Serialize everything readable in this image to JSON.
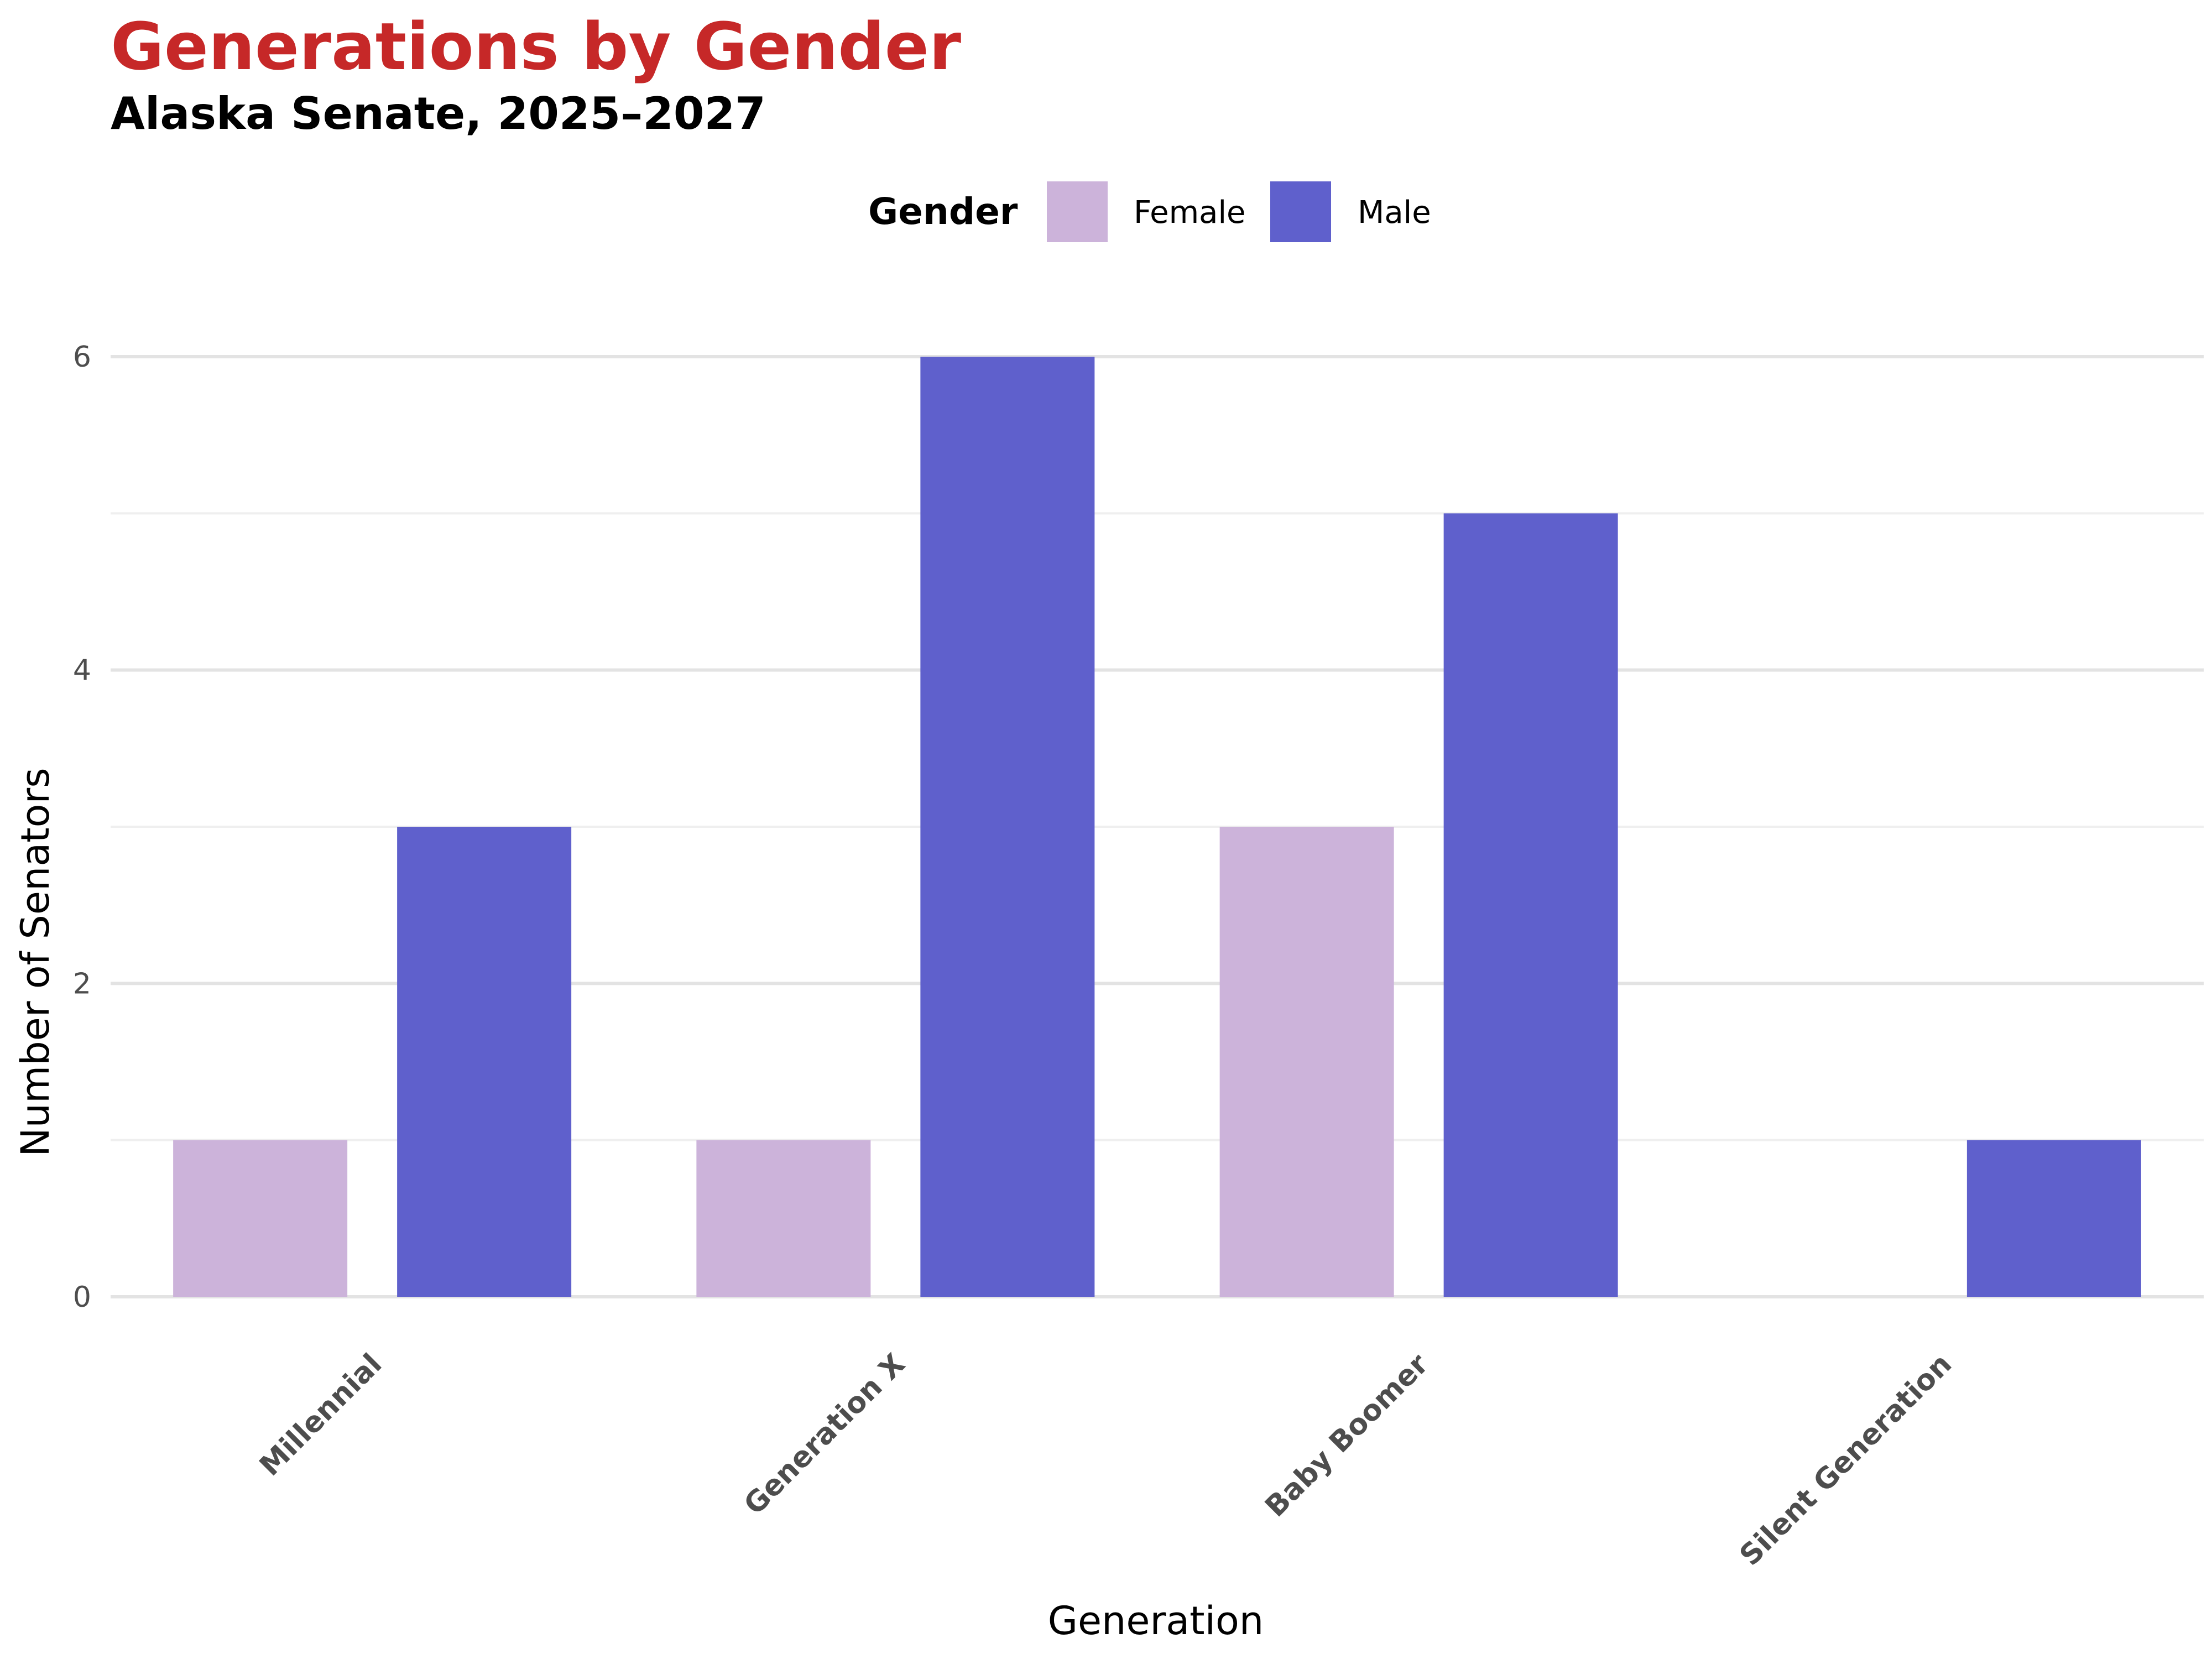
{
  "chart_data": {
    "type": "bar",
    "title": "Generations by Gender",
    "subtitle": "Alaska Senate, 2025–2027",
    "xlabel": "Generation",
    "ylabel": "Number of Senators",
    "categories": [
      "Millennial",
      "Generation X",
      "Baby Boomer",
      "Silent Generation"
    ],
    "series": [
      {
        "name": "Female",
        "color": "#ccb3da",
        "values": [
          1,
          1,
          3,
          0
        ]
      },
      {
        "name": "Male",
        "color": "#5f60cc",
        "values": [
          3,
          6,
          5,
          1
        ]
      }
    ],
    "legend": {
      "title": "Gender",
      "position": "top"
    },
    "yticks": [
      0,
      2,
      4,
      6
    ],
    "ylim": [
      0,
      6.3
    ],
    "grid": true
  }
}
